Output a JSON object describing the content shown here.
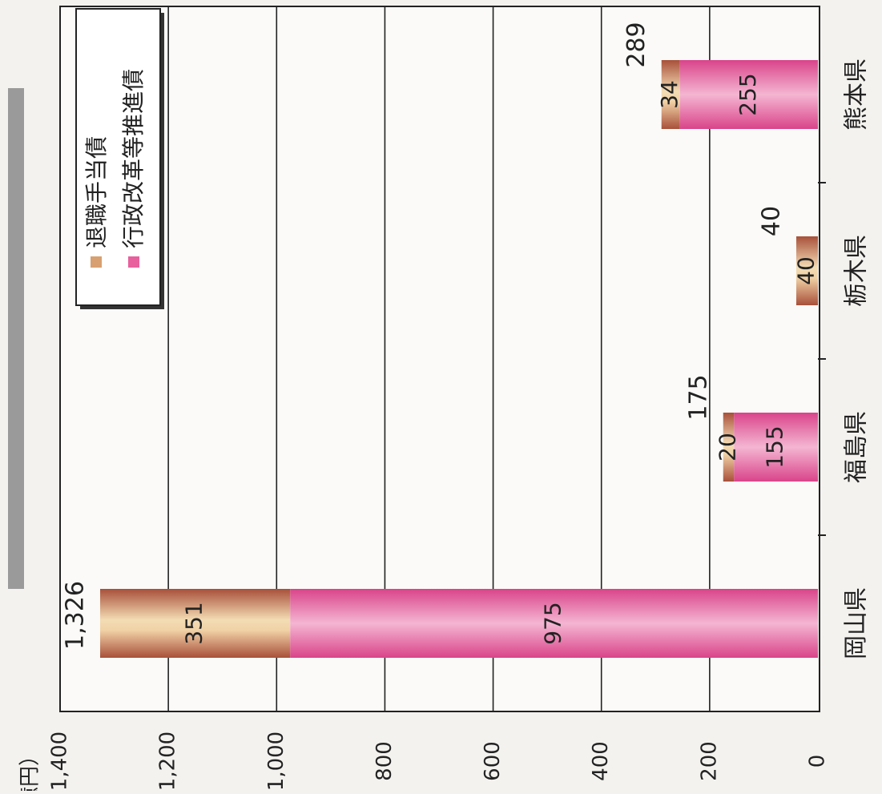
{
  "chart_data": {
    "type": "bar",
    "orientation": "horizontal-rotated-page",
    "stacked": true,
    "unit_label": "（億円）",
    "categories": [
      "岡山県",
      "福島県",
      "栃木県",
      "熊本県"
    ],
    "series": [
      {
        "name": "行政改革等推進債",
        "values": [
          975,
          155,
          0,
          255
        ],
        "color": "#e8609e"
      },
      {
        "name": "退職手当債",
        "values": [
          351,
          20,
          40,
          34
        ],
        "color": "#d8a070"
      }
    ],
    "totals": [
      1326,
      175,
      40,
      289
    ],
    "total_labels": [
      "1,326",
      "175",
      "40",
      "289"
    ],
    "segment_labels": {
      "行政改革等推進債": [
        "975",
        "155",
        "",
        "255"
      ],
      "退職手当債": [
        "351",
        "20",
        "40",
        "34"
      ]
    },
    "value_axis": {
      "min": 0,
      "max": 1400,
      "step": 200,
      "tick_labels": [
        "0",
        "200",
        "400",
        "600",
        "800",
        "1,000",
        "1,200",
        "1,400"
      ]
    },
    "grid": true,
    "legend_position": "top-right"
  }
}
